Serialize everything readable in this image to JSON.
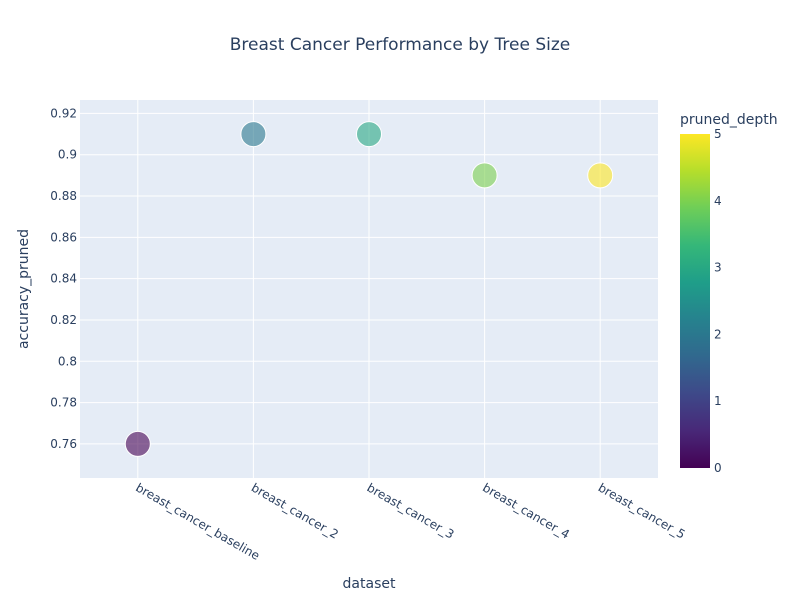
{
  "chart_data": {
    "type": "scatter",
    "title": "Breast Cancer Performance by Tree Size",
    "xlabel": "dataset",
    "ylabel": "accuracy_pruned",
    "categories": [
      "breast_cancer_baseline",
      "breast_cancer_2",
      "breast_cancer_3",
      "breast_cancer_4",
      "breast_cancer_5"
    ],
    "values": [
      0.76,
      0.91,
      0.91,
      0.89,
      0.89
    ],
    "color_values": [
      0,
      2,
      3,
      4,
      5
    ],
    "yticks": [
      "0.76",
      "0.78",
      "0.8",
      "0.82",
      "0.84",
      "0.86",
      "0.88",
      "0.9",
      "0.92"
    ],
    "ylim": [
      0.7435,
      0.9265
    ],
    "grid": true,
    "colorbar": {
      "title": "pruned_depth",
      "range": [
        0,
        5
      ],
      "ticks": [
        "0",
        "1",
        "2",
        "3",
        "4",
        "5"
      ],
      "colorscale": [
        "#440154",
        "#482878",
        "#3e4989",
        "#31688e",
        "#26828e",
        "#1f9e89",
        "#35b779",
        "#6ece58",
        "#b5de2b",
        "#fde725"
      ]
    },
    "colors": {
      "plot_bg": "#e5ecf6",
      "grid": "#ffffff",
      "text": "#2a3f5f"
    }
  }
}
